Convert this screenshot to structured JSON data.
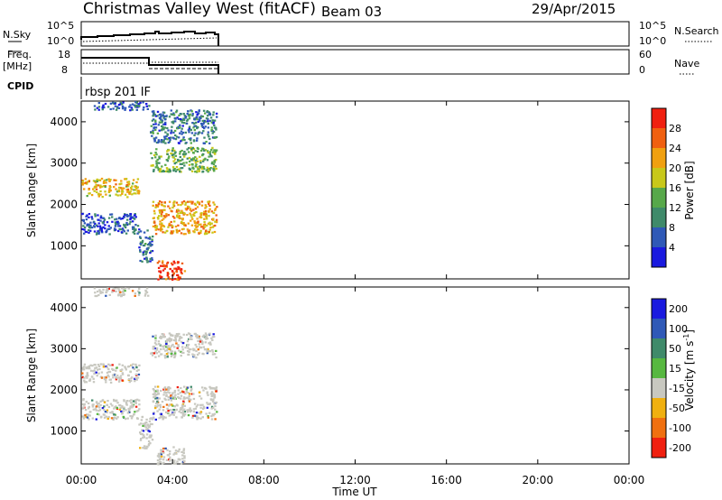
{
  "header": {
    "title": "Christmas Valley West (fitACF)",
    "beam": "Beam 03",
    "date": "29/Apr/2015"
  },
  "colors": {
    "power_scale": [
      "#1a1adf",
      "#2f59b7",
      "#3f8a6a",
      "#57a84a",
      "#c8c81a",
      "#f0a010",
      "#f06010",
      "#f02010"
    ],
    "velocity_scale": [
      "#1a1adf",
      "#2f59b7",
      "#3f8a6a",
      "#57b840",
      "#c8c8c0",
      "#f0b010",
      "#f07010",
      "#f02010"
    ]
  },
  "nsky_panel": {
    "left_label": "N.Sky",
    "right_label": "N.Search",
    "left_ticks": [
      "10^5",
      "10^0"
    ],
    "right_ticks": [
      "10^5",
      "10^0"
    ]
  },
  "freq_panel": {
    "left_label_1": "Freq.",
    "left_label_2": "[MHz]",
    "right_label": "Nave",
    "left_ticks": [
      "18",
      "8"
    ],
    "right_ticks": [
      "60",
      "0"
    ]
  },
  "cpid": {
    "label": "CPID",
    "program": "rbsp 201 IF"
  },
  "chart_data": [
    {
      "type": "heatmap",
      "ylabel": "Slant Range [km]",
      "x_ticks": [
        "00:00",
        "04:00",
        "08:00",
        "12:00",
        "16:00",
        "20:00",
        "00:00"
      ],
      "y_ticks": [
        "1000",
        "2000",
        "3000",
        "4000"
      ],
      "ylim": [
        200,
        4500
      ],
      "xlim_hours": [
        0,
        24
      ],
      "colorbar_label": "Power [dB]",
      "colorbar_ticks": [
        "4",
        "8",
        "12",
        "16",
        "20",
        "24",
        "28"
      ],
      "colorbar_range": [
        0,
        32
      ],
      "data_extent_hours": [
        0,
        6
      ],
      "echo_regions": [
        {
          "t0": 0.0,
          "t1": 2.5,
          "r0": 2200,
          "r1": 2650,
          "power": 20
        },
        {
          "t0": 0.0,
          "t1": 2.5,
          "r0": 1300,
          "r1": 1800,
          "power": 6
        },
        {
          "t0": 2.5,
          "t1": 3.1,
          "r0": 600,
          "r1": 1400,
          "power": 8
        },
        {
          "t0": 3.1,
          "t1": 5.9,
          "r0": 1300,
          "r1": 2100,
          "power": 22
        },
        {
          "t0": 3.3,
          "t1": 4.5,
          "r0": 200,
          "r1": 650,
          "power": 28
        },
        {
          "t0": 3.0,
          "t1": 5.9,
          "r0": 2800,
          "r1": 3400,
          "power": 14
        },
        {
          "t0": 0.5,
          "t1": 3.0,
          "r0": 4300,
          "r1": 4500,
          "power": 6
        },
        {
          "t0": 3.0,
          "t1": 5.9,
          "r0": 3500,
          "r1": 4300,
          "power": 8
        }
      ]
    },
    {
      "type": "heatmap",
      "ylabel": "Slant Range [km]",
      "xlabel": "Time UT",
      "x_ticks": [
        "00:00",
        "04:00",
        "08:00",
        "12:00",
        "16:00",
        "20:00",
        "00:00"
      ],
      "y_ticks": [
        "1000",
        "2000",
        "3000",
        "4000"
      ],
      "ylim": [
        200,
        4500
      ],
      "xlim_hours": [
        0,
        24
      ],
      "colorbar_label": "Velocity [m s",
      "colorbar_label_sup": "-1",
      "colorbar_label_end": "]",
      "colorbar_ticks": [
        "200",
        "100",
        "50",
        "15",
        "-15",
        "-50",
        "-100",
        "-200"
      ],
      "data_extent_hours": [
        0,
        6
      ],
      "echo_regions": [
        {
          "t0": 0.0,
          "t1": 2.5,
          "r0": 2200,
          "r1": 2650,
          "velocity": 0
        },
        {
          "t0": 0.0,
          "t1": 2.5,
          "r0": 1300,
          "r1": 1800,
          "velocity": 0
        },
        {
          "t0": 2.5,
          "t1": 3.1,
          "r0": 600,
          "r1": 1400,
          "velocity": 0
        },
        {
          "t0": 3.1,
          "t1": 5.9,
          "r0": 1300,
          "r1": 2100,
          "velocity": 0
        },
        {
          "t0": 3.3,
          "t1": 4.5,
          "r0": 200,
          "r1": 650,
          "velocity": 0
        },
        {
          "t0": 3.0,
          "t1": 5.9,
          "r0": 2800,
          "r1": 3400,
          "velocity": 0
        },
        {
          "t0": 0.5,
          "t1": 3.0,
          "r0": 4300,
          "r1": 4500,
          "velocity": 0
        }
      ]
    }
  ]
}
